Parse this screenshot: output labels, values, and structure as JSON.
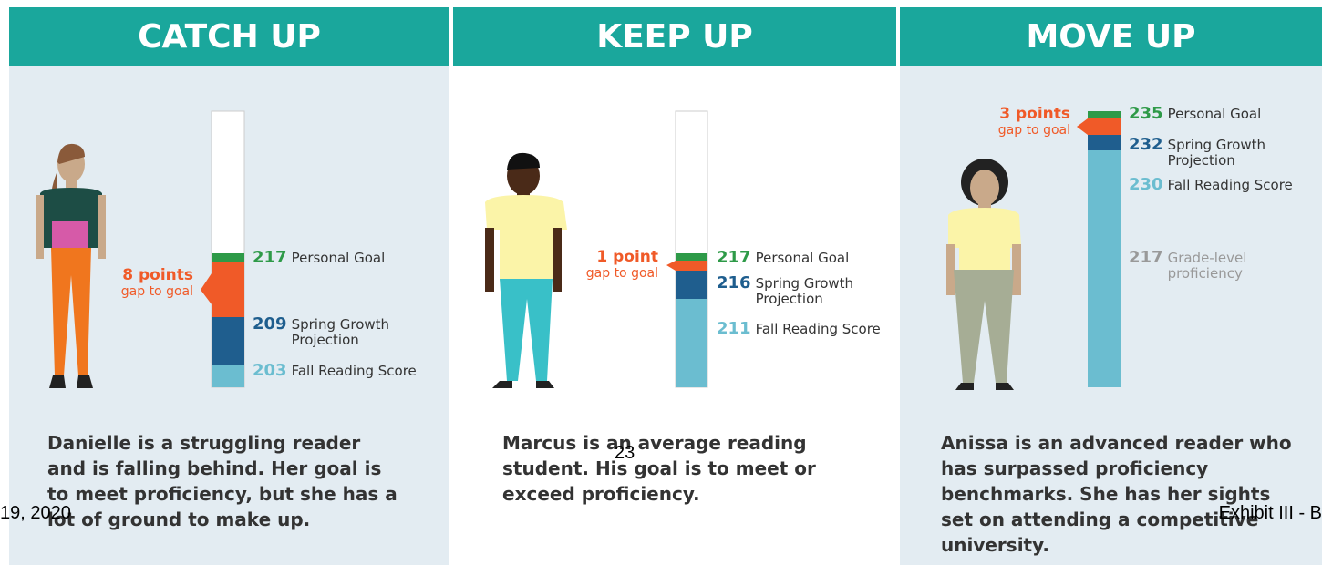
{
  "panels": [
    {
      "title": "CATCH UP",
      "gap": {
        "amount": "8 points",
        "label": "gap to goal"
      },
      "scores": [
        {
          "value": 217,
          "label": "Personal Goal"
        },
        {
          "value": 209,
          "label": "Spring Growth Projection"
        },
        {
          "value": 203,
          "label": "Fall Reading Score"
        }
      ],
      "description": "Danielle is a struggling reader and is falling behind. Her goal is to meet proficiency, but she has a lot of ground to make up."
    },
    {
      "title": "KEEP UP",
      "gap": {
        "amount": "1 point",
        "label": "gap to goal"
      },
      "scores": [
        {
          "value": 217,
          "label": "Personal Goal"
        },
        {
          "value": 216,
          "label": "Spring Growth Projection"
        },
        {
          "value": 211,
          "label": "Fall Reading Score"
        }
      ],
      "description": "Marcus is an average reading student. His goal is to meet or exceed proficiency."
    },
    {
      "title": "MOVE UP",
      "gap": {
        "amount": "3 points",
        "label": "gap to goal"
      },
      "scores": [
        {
          "value": 235,
          "label": "Personal Goal"
        },
        {
          "value": 232,
          "label": "Spring Growth Projection"
        },
        {
          "value": 230,
          "label": "Fall Reading Score"
        },
        {
          "value": 217,
          "label": "Grade-level proficiency"
        }
      ],
      "description": "Anissa is an advanced reader who has surpassed proficiency benchmarks. She has her sights set on attending a competitive university."
    }
  ],
  "footer": {
    "date": "19, 2020",
    "page": "23",
    "exhibit": "Exhibit III - B"
  }
}
